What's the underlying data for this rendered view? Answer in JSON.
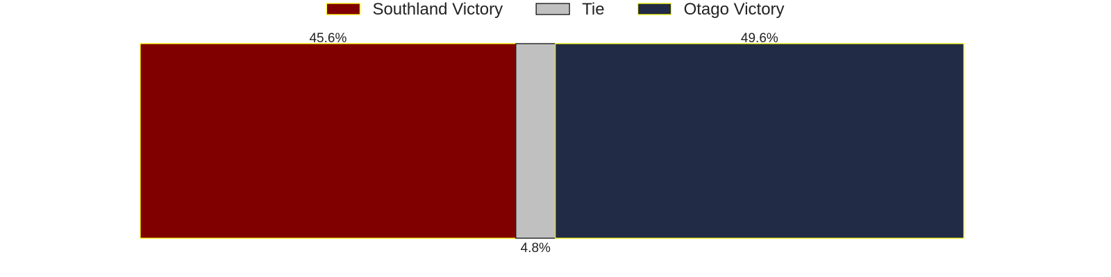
{
  "chart_data": {
    "type": "bar",
    "orientation": "horizontal-stacked",
    "categories": [
      "Southland Victory",
      "Tie",
      "Otago Victory"
    ],
    "values": [
      45.6,
      4.8,
      49.6
    ],
    "labels": [
      "45.6%",
      "4.8%",
      "49.6%"
    ],
    "label_positions": [
      "top",
      "bottom",
      "top"
    ],
    "colors": [
      "#800000",
      "#c0c0c0",
      "#212b45"
    ],
    "edge_colors": [
      "#ffff00",
      "#000000",
      "#ffff00"
    ],
    "legend": {
      "placement": "top-center",
      "entries": [
        "Southland Victory",
        "Tie",
        "Otago Victory"
      ]
    },
    "title": "",
    "xlabel": "",
    "ylabel": "",
    "xlim": [
      0,
      100
    ],
    "grid": false
  }
}
